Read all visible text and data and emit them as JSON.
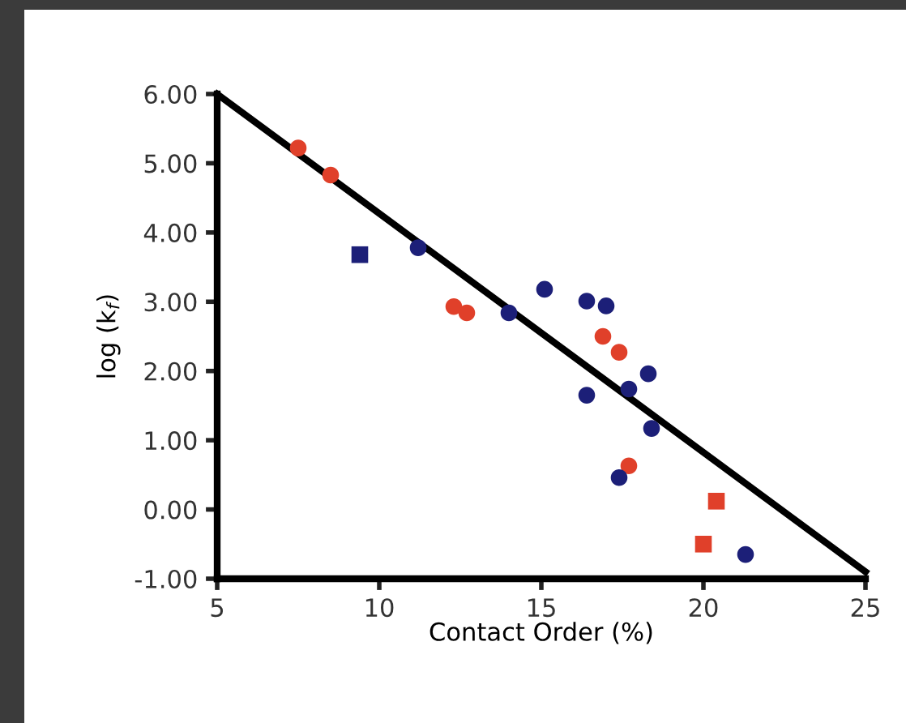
{
  "chart_data": {
    "type": "scatter",
    "xlabel": "Contact Order (%)",
    "ylabel": "log (k$_{f}$)",
    "xlim": [
      5,
      25
    ],
    "ylim": [
      -1.0,
      6.0
    ],
    "xticks": [
      5,
      10,
      15,
      20,
      25
    ],
    "yticks": [
      {
        "value": -1,
        "label": "-1.00"
      },
      {
        "value": 0,
        "label": "0.00"
      },
      {
        "value": 1,
        "label": "1.00"
      },
      {
        "value": 2,
        "label": "2.00"
      },
      {
        "value": 3,
        "label": "3.00"
      },
      {
        "value": 4,
        "label": "4.00"
      },
      {
        "value": 5,
        "label": "5.00"
      },
      {
        "value": 6,
        "label": "6.00"
      }
    ],
    "grid": false,
    "legend": false,
    "series": [
      {
        "color": "#e0402a",
        "marker": "circle",
        "x": [
          7.5,
          8.5,
          12.3,
          12.7,
          16.9,
          17.4,
          17.7
        ],
        "values": [
          5.22,
          4.83,
          2.93,
          2.84,
          2.5,
          2.27,
          0.63
        ]
      },
      {
        "color": "#e0402a",
        "marker": "square",
        "x": [
          20.4,
          20.0
        ],
        "values": [
          0.12,
          -0.5
        ]
      },
      {
        "color": "#1c1f78",
        "marker": "circle",
        "x": [
          11.2,
          14.0,
          15.1,
          16.4,
          17.0,
          18.3,
          16.4,
          17.7,
          18.4,
          17.4,
          21.3
        ],
        "values": [
          3.78,
          2.84,
          3.18,
          3.01,
          2.94,
          1.96,
          1.65,
          1.74,
          1.17,
          0.46,
          -0.65
        ]
      },
      {
        "color": "#1c1f78",
        "marker": "square",
        "x": [
          9.4
        ],
        "values": [
          3.68
        ]
      },
      {
        "type": "line",
        "color": "#000000",
        "marker": "none",
        "line_style": "solid",
        "x": [
          5,
          25
        ],
        "values": [
          6.0,
          -0.9
        ]
      }
    ]
  }
}
